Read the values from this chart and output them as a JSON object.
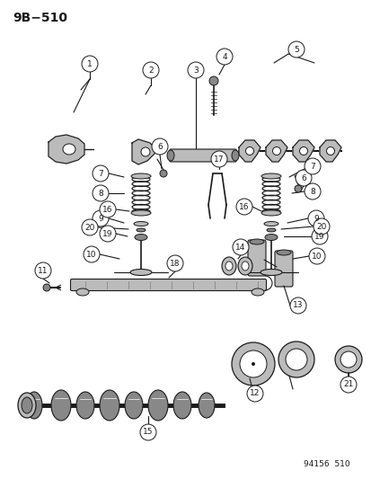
{
  "title": "9B−510",
  "footer": "94156  510",
  "bg_color": "#ffffff",
  "lc": "#1a1a1a",
  "gray_dark": "#555555",
  "gray_mid": "#888888",
  "gray_light": "#bbbbbb",
  "gray_fill": "#999999"
}
